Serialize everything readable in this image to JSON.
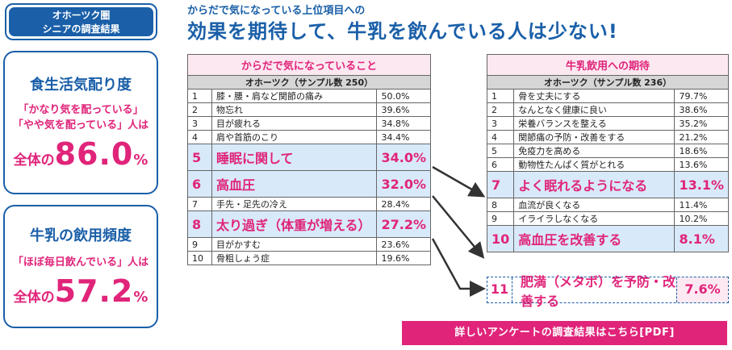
{
  "tag": {
    "line1": "オホーツク圏",
    "line2": "シニアの調査結果"
  },
  "heading": {
    "sub": "からだで気になっている上位項目への",
    "main": "効果を期待して、牛乳を飲んでいる人は少ない!"
  },
  "card1": {
    "title": "食生活気配り度",
    "line1": "「かなり気を配っている」",
    "line2": "「やや気を配っている」人は",
    "prefix": "全体の",
    "value": "86.0",
    "unit": "%"
  },
  "card2": {
    "title": "牛乳の飲用頻度",
    "line1": "「ほぼ毎日飲んでいる」人は",
    "prefix": "全体の",
    "value": "57.2",
    "unit": "%"
  },
  "table_body": {
    "title": "からだで気になっていること",
    "subheader": "オホーツク（サンプル数 250）",
    "rows": [
      {
        "num": "1",
        "label": "膝・腰・肩など関節の痛み",
        "value": "50.0%"
      },
      {
        "num": "2",
        "label": "物忘れ",
        "value": "39.6%"
      },
      {
        "num": "3",
        "label": "目が疲れる",
        "value": "34.8%"
      },
      {
        "num": "4",
        "label": "肩や首筋のこり",
        "value": "34.4%"
      },
      {
        "num": "5",
        "label": "睡眠に関して",
        "value": "34.0%"
      },
      {
        "num": "6",
        "label": "高血圧",
        "value": "32.0%"
      },
      {
        "num": "7",
        "label": "手先・足先の冷え",
        "value": "28.4%"
      },
      {
        "num": "8",
        "label": "太り過ぎ（体重が増える）",
        "value": "27.2%"
      },
      {
        "num": "9",
        "label": "目がかすむ",
        "value": "23.6%"
      },
      {
        "num": "10",
        "label": "骨粗しょう症",
        "value": "19.6%"
      }
    ]
  },
  "table_milk": {
    "title": "牛乳飲用への期待",
    "subheader": "オホーツク（サンプル数 236）",
    "rows": [
      {
        "num": "1",
        "label": "骨を丈夫にする",
        "value": "79.7%"
      },
      {
        "num": "2",
        "label": "なんとなく健康に良い",
        "value": "38.6%"
      },
      {
        "num": "3",
        "label": "栄養バランスを整える",
        "value": "35.2%"
      },
      {
        "num": "4",
        "label": "関節痛の予防・改善をする",
        "value": "21.2%"
      },
      {
        "num": "5",
        "label": "免疫力を高める",
        "value": "18.6%"
      },
      {
        "num": "6",
        "label": "動物性たんぱく質がとれる",
        "value": "13.6%"
      },
      {
        "num": "7",
        "label": "よく眠れるようになる",
        "value": "13.1%"
      },
      {
        "num": "8",
        "label": "血流が良くなる",
        "value": "11.4%"
      },
      {
        "num": "9",
        "label": "イライラしなくなる",
        "value": "10.2%"
      },
      {
        "num": "10",
        "label": "高血圧を改善する",
        "value": "8.1%"
      }
    ],
    "extra": {
      "num": "11",
      "label": "肥満（メタボ）を予防・改善する",
      "value": "7.6%"
    }
  },
  "pdf_button": "詳しいアンケートの調査結果はこちら[PDF]",
  "colors": {
    "accent_blue": "#1a5fa8",
    "accent_pink": "#e0247a",
    "highlight_bg": "#d8e9fa"
  }
}
